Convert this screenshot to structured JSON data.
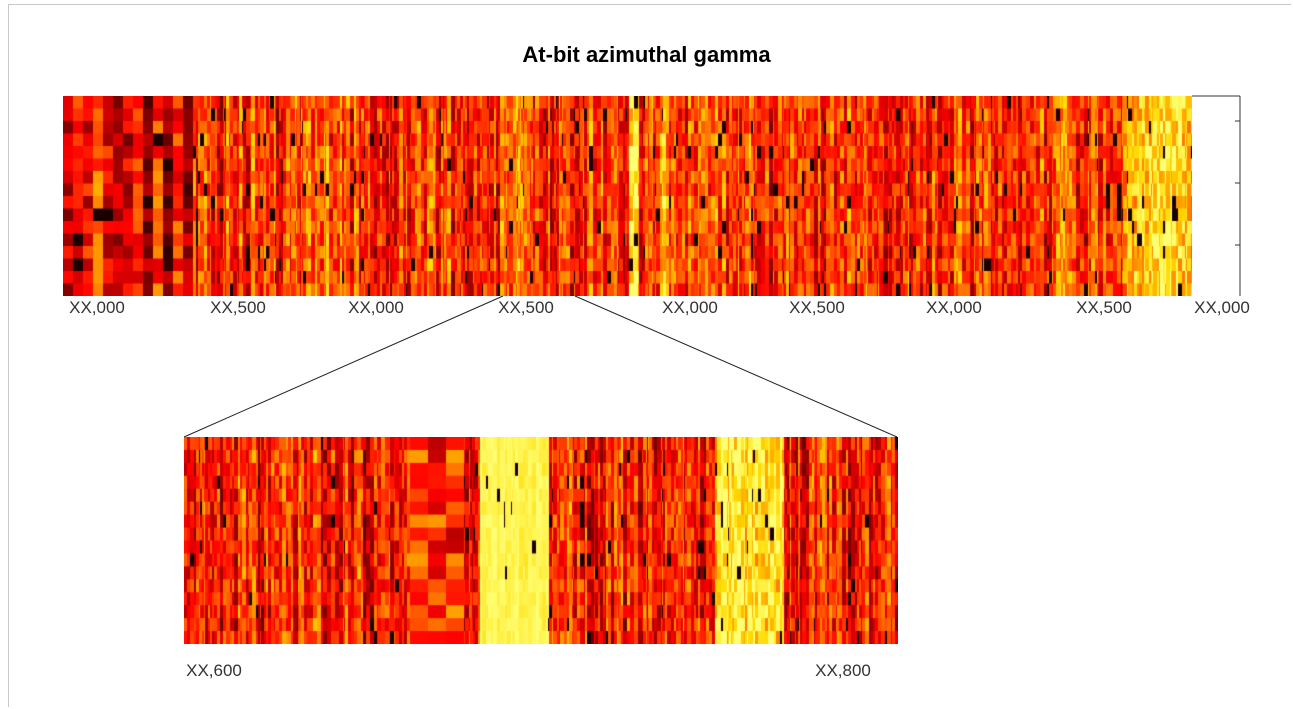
{
  "chart_data": [
    {
      "type": "heatmap",
      "title": "At-bit azimuthal gamma",
      "colormap": "hot",
      "colors": {
        "low": "#000000",
        "mid1": "#b00000",
        "mid2": "#ff3300",
        "mid3": "#ff9900",
        "high": "#ffff66"
      },
      "x_ticks": [
        "XX,000",
        "XX,500",
        "XX,000",
        "XX,500",
        "XX,000",
        "XX,500",
        "XX,000",
        "XX,500",
        "XX,000"
      ],
      "rows": 16,
      "grid": false
    },
    {
      "type": "heatmap",
      "title": "",
      "colormap": "hot",
      "x_ticks": [
        "XX,600",
        "XX,800"
      ],
      "rows": 16,
      "grid": false
    }
  ]
}
